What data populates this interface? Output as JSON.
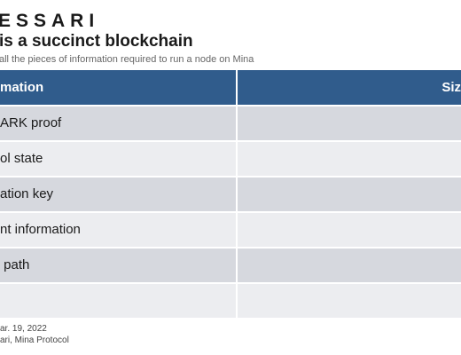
{
  "brand": {
    "logo_text": "ESSARI"
  },
  "heading": {
    "title": "is a succinct blockchain",
    "subtitle": "all the pieces of information required to run a node on Mina"
  },
  "table": {
    "headers": [
      "mation",
      "Siz"
    ],
    "rows": [
      {
        "item": "ARK proof",
        "size": ""
      },
      {
        "item": "ol state",
        "size": ""
      },
      {
        "item": "ation key",
        "size": ""
      },
      {
        "item": "nt information",
        "size": ""
      },
      {
        "item": " path",
        "size": ""
      },
      {
        "item": "",
        "size": ""
      }
    ],
    "colors": {
      "header_bg": "#305c8c",
      "row_shade": "#d6d8de",
      "row_light": "#ecedf0"
    }
  },
  "footer": {
    "date_line": "ar. 19, 2022",
    "source_line": "ari, Mina Protocol"
  }
}
